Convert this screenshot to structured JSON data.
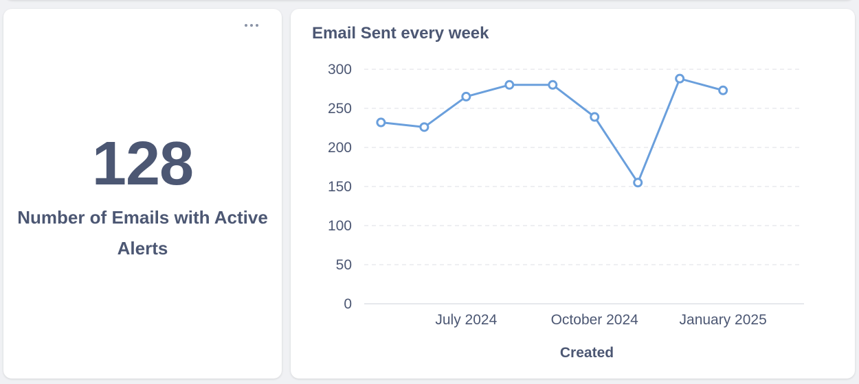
{
  "scalar_card": {
    "value": "128",
    "label": "Number of Emails with Active Alerts"
  },
  "chart_card": {
    "title": "Email Sent every week"
  },
  "colors": {
    "series": "#6a9fdc",
    "grid": "#e3e5ea",
    "text": "#4c5773"
  },
  "chart_data": {
    "type": "line",
    "title": "Email Sent every week",
    "xlabel": "Created",
    "ylabel": "",
    "ylim": [
      0,
      300
    ],
    "yticks": [
      0,
      50,
      100,
      150,
      200,
      250,
      300
    ],
    "x_tick_labels": [
      {
        "label": "July 2024",
        "date": "2024-07-01"
      },
      {
        "label": "October 2024",
        "date": "2024-10-01"
      },
      {
        "label": "January 2025",
        "date": "2025-01-01"
      }
    ],
    "xlim": [
      "2024-04-19",
      "2025-02-28"
    ],
    "grid": true,
    "series": [
      {
        "x": [
          "2024-05-01",
          "2024-06-01",
          "2024-07-01",
          "2024-08-01",
          "2024-09-01",
          "2024-10-01",
          "2024-11-01",
          "2024-12-01",
          "2025-01-01"
        ],
        "values": [
          232,
          226,
          265,
          280,
          280,
          239,
          155,
          288,
          273
        ]
      }
    ]
  }
}
